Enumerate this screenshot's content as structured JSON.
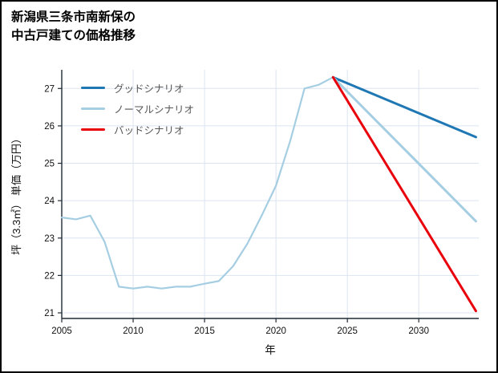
{
  "page": {
    "title_lines": [
      "新潟県三条市南新保の",
      "中古戸建ての価格推移"
    ]
  },
  "chart_data": {
    "type": "line",
    "title": "新潟県三条市南新保の中古戸建ての価格推移",
    "xlabel": "年",
    "ylabel": "坪（3.3㎡） 単価（万円）",
    "xlim": [
      2005,
      2034.2
    ],
    "ylim": [
      20.85,
      27.5
    ],
    "xticks": [
      2005,
      2010,
      2015,
      2020,
      2025,
      2030
    ],
    "yticks": [
      21,
      22,
      23,
      24,
      25,
      26,
      27
    ],
    "grid": true,
    "legend_position": "upper-left",
    "series": [
      {
        "key": "history",
        "label": null,
        "color": "#a6cee3",
        "width": 2.2,
        "x": [
          2005,
          2006,
          2007,
          2008,
          2009,
          2010,
          2011,
          2012,
          2013,
          2014,
          2015,
          2016,
          2017,
          2018,
          2019,
          2020,
          2021,
          2022,
          2023,
          2024
        ],
        "y": [
          23.55,
          23.5,
          23.6,
          22.9,
          21.7,
          21.65,
          21.7,
          21.65,
          21.7,
          21.7,
          21.78,
          21.85,
          22.25,
          22.85,
          23.6,
          24.4,
          25.6,
          27.0,
          27.1,
          27.3
        ]
      },
      {
        "key": "good",
        "label": "グッドシナリオ",
        "color": "#1f77b4",
        "width": 3,
        "x": [
          2024,
          2034
        ],
        "y": [
          27.3,
          25.7
        ]
      },
      {
        "key": "normal",
        "label": "ノーマルシナリオ",
        "color": "#a6cee3",
        "width": 3,
        "x": [
          2024,
          2034
        ],
        "y": [
          27.3,
          23.45
        ]
      },
      {
        "key": "bad",
        "label": "バッドシナリオ",
        "color": "#e8000b",
        "width": 3,
        "x": [
          2024,
          2034
        ],
        "y": [
          27.3,
          21.05
        ]
      }
    ]
  }
}
